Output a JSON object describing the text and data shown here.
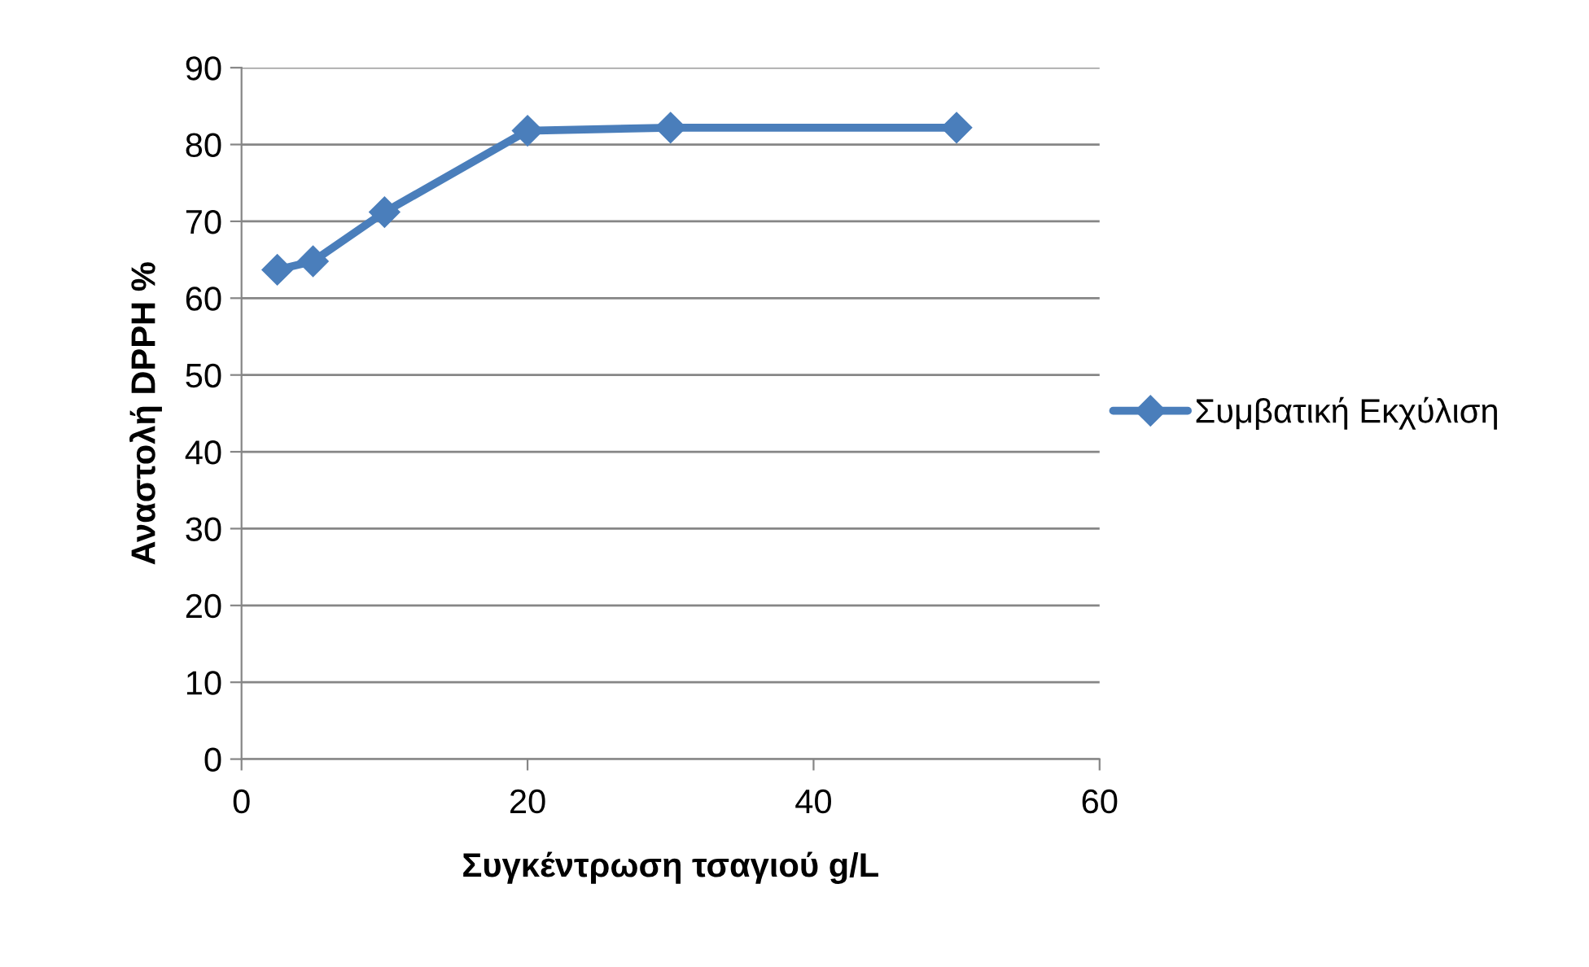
{
  "chart_data": {
    "type": "line",
    "xlabel": "Συγκέντρωση τσαγιού g/L",
    "ylabel": "Αναστολή DPPH %",
    "x": [
      2.5,
      5,
      10,
      20,
      30,
      50
    ],
    "series": [
      {
        "name": "Συμβατική Εκχύλιση",
        "color": "#4a7ebb",
        "values": [
          63.7,
          64.8,
          71.2,
          81.8,
          82.2,
          82.2
        ]
      }
    ],
    "xlim": [
      0,
      60
    ],
    "xticks": [
      0,
      20,
      40,
      60
    ],
    "ylim": [
      0,
      90
    ],
    "yticks": [
      0,
      10,
      20,
      30,
      40,
      50,
      60,
      70,
      80,
      90
    ],
    "grid": "y",
    "legend": "right",
    "marker": "diamond",
    "line_style": "solid"
  }
}
